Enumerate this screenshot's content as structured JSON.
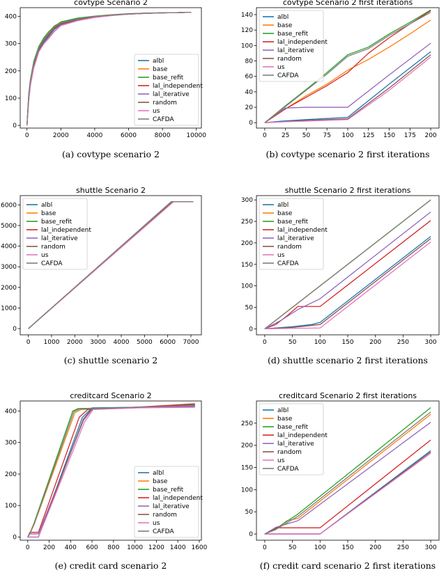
{
  "legend_labels": [
    "albl",
    "base",
    "base_refit",
    "lal_independent",
    "lal_iterative",
    "random",
    "us",
    "CAFDA"
  ],
  "series_colors": {
    "albl": "#1f77b4",
    "base": "#ff7f0e",
    "base_refit": "#2ca02c",
    "lal_independent": "#d62728",
    "lal_iterative": "#9467bd",
    "random": "#8c564b",
    "us": "#e377c2",
    "CAFDA": "#7f7f7f"
  },
  "chart_data": [
    {
      "id": "a",
      "type": "line",
      "title": "covtype Scenario 2",
      "caption": "(a) covtype scenario 2",
      "xlim": [
        -400,
        10300
      ],
      "ylim": [
        -10,
        432
      ],
      "xticks": [
        0,
        2000,
        4000,
        6000,
        8000,
        10000
      ],
      "yticks": [
        0,
        100,
        200,
        300,
        400
      ],
      "legend_loc": "lower-right",
      "series": [
        {
          "name": "albl",
          "x": [
            0,
            100,
            200,
            400,
            700,
            1000,
            1300,
            1600,
            2000,
            3000,
            4000,
            5000,
            6000,
            7000,
            8000,
            9000,
            9700
          ],
          "y": [
            0,
            90,
            150,
            215,
            275,
            305,
            328,
            352,
            370,
            388,
            398,
            404,
            408,
            411,
            413,
            414,
            415
          ]
        },
        {
          "name": "base",
          "x": [
            0,
            100,
            200,
            400,
            700,
            1000,
            1300,
            1600,
            2000,
            3000,
            4000,
            5000,
            6000,
            7000,
            8000,
            9000,
            9700
          ],
          "y": [
            0,
            110,
            165,
            230,
            285,
            318,
            340,
            365,
            378,
            392,
            400,
            405,
            409,
            412,
            413,
            414,
            415
          ]
        },
        {
          "name": "base_refit",
          "x": [
            0,
            100,
            200,
            400,
            700,
            1000,
            1300,
            1600,
            2000,
            3000,
            4000,
            5000,
            6000,
            7000,
            8000,
            9000,
            9700
          ],
          "y": [
            0,
            112,
            168,
            235,
            290,
            322,
            345,
            362,
            380,
            394,
            401,
            406,
            410,
            412,
            413,
            414,
            415
          ]
        },
        {
          "name": "lal_independent",
          "x": [
            0,
            100,
            200,
            400,
            700,
            1000,
            1300,
            1600,
            2000,
            3000,
            4000,
            5000,
            6000,
            7000,
            8000,
            9000,
            9700
          ],
          "y": [
            0,
            105,
            160,
            225,
            282,
            315,
            335,
            358,
            375,
            390,
            399,
            405,
            409,
            411,
            413,
            414,
            415
          ]
        },
        {
          "name": "lal_iterative",
          "x": [
            0,
            100,
            200,
            400,
            700,
            1000,
            1300,
            1600,
            2000,
            3000,
            4000,
            5000,
            6000,
            7000,
            8000,
            9000,
            9700
          ],
          "y": [
            0,
            95,
            150,
            215,
            272,
            300,
            322,
            345,
            368,
            385,
            396,
            403,
            408,
            411,
            413,
            414,
            415
          ]
        },
        {
          "name": "random",
          "x": [
            0,
            100,
            200,
            400,
            700,
            1000,
            1300,
            1600,
            2000,
            3000,
            4000,
            5000,
            6000,
            7000,
            8000,
            9000,
            9700
          ],
          "y": [
            0,
            100,
            155,
            220,
            278,
            310,
            332,
            355,
            372,
            389,
            398,
            404,
            408,
            411,
            413,
            414,
            415
          ]
        },
        {
          "name": "us",
          "x": [
            0,
            100,
            200,
            400,
            700,
            1000,
            1300,
            1600,
            2000,
            3000,
            4000,
            5000,
            6000,
            7000,
            8000,
            9000,
            9700
          ],
          "y": [
            0,
            85,
            145,
            210,
            270,
            300,
            320,
            343,
            366,
            384,
            396,
            403,
            408,
            411,
            413,
            414,
            415
          ]
        },
        {
          "name": "CAFDA",
          "x": [
            0,
            100,
            200,
            400,
            700,
            1000,
            1300,
            1600,
            2000,
            3000,
            4000,
            5000,
            6000,
            7000,
            8000,
            9000,
            9700
          ],
          "y": [
            0,
            108,
            162,
            228,
            284,
            316,
            338,
            360,
            376,
            391,
            400,
            405,
            409,
            412,
            413,
            414,
            415
          ]
        }
      ]
    },
    {
      "id": "b",
      "type": "line",
      "title": "covtype Scenario 2 first iterations",
      "caption": "(b) covtype scenario 2 first iterations",
      "xlim": [
        -10,
        210
      ],
      "ylim": [
        -7,
        149
      ],
      "xticks": [
        0,
        25,
        50,
        75,
        100,
        125,
        150,
        175,
        200
      ],
      "yticks": [
        0,
        20,
        40,
        60,
        80,
        100,
        120,
        140
      ],
      "legend_loc": "upper-left",
      "series": [
        {
          "name": "albl",
          "x": [
            0,
            20,
            50,
            100,
            150,
            200
          ],
          "y": [
            0,
            2,
            4,
            7,
            50,
            92
          ]
        },
        {
          "name": "base",
          "x": [
            0,
            25,
            50,
            75,
            100,
            125,
            150,
            175,
            200
          ],
          "y": [
            0,
            18,
            35,
            50,
            68,
            82,
            98,
            115,
            133
          ]
        },
        {
          "name": "base_refit",
          "x": [
            0,
            25,
            50,
            75,
            100,
            125,
            150,
            175,
            200
          ],
          "y": [
            0,
            22,
            43,
            65,
            88,
            98,
            115,
            130,
            146
          ]
        },
        {
          "name": "lal_independent",
          "x": [
            0,
            25,
            50,
            75,
            100,
            125,
            150,
            175,
            200
          ],
          "y": [
            0,
            18,
            33,
            48,
            65,
            90,
            110,
            128,
            145
          ]
        },
        {
          "name": "lal_iterative",
          "x": [
            0,
            15,
            25,
            50,
            100,
            150,
            200
          ],
          "y": [
            0,
            12,
            19,
            20,
            20,
            62,
            103
          ]
        },
        {
          "name": "random",
          "x": [
            0,
            20,
            50,
            100,
            150,
            200
          ],
          "y": [
            0,
            1,
            3,
            5,
            45,
            88
          ]
        },
        {
          "name": "us",
          "x": [
            0,
            20,
            50,
            100,
            150,
            200
          ],
          "y": [
            0,
            1,
            2,
            4,
            42,
            85
          ]
        },
        {
          "name": "CAFDA",
          "x": [
            0,
            25,
            50,
            75,
            100,
            125,
            150,
            175,
            200
          ],
          "y": [
            0,
            21,
            42,
            63,
            86,
            96,
            113,
            128,
            143
          ]
        }
      ]
    },
    {
      "id": "c",
      "type": "line",
      "title": "shuttle Scenario 2",
      "caption": "(c) shuttle scenario 2",
      "xlim": [
        -350,
        7450
      ],
      "ylim": [
        -300,
        6450
      ],
      "xticks": [
        0,
        1000,
        2000,
        3000,
        4000,
        5000,
        6000,
        7000
      ],
      "yticks": [
        0,
        1000,
        2000,
        3000,
        4000,
        5000,
        6000
      ],
      "legend_loc": "upper-left",
      "series": [
        {
          "name": "albl",
          "x": [
            0,
            6150,
            7100
          ],
          "y": [
            0,
            6150,
            6150
          ]
        },
        {
          "name": "base",
          "x": [
            0,
            6150,
            7100
          ],
          "y": [
            0,
            6150,
            6150
          ]
        },
        {
          "name": "base_refit",
          "x": [
            0,
            6150,
            7100
          ],
          "y": [
            0,
            6150,
            6150
          ]
        },
        {
          "name": "lal_independent",
          "x": [
            0,
            6180,
            7100
          ],
          "y": [
            0,
            6150,
            6150
          ]
        },
        {
          "name": "lal_iterative",
          "x": [
            0,
            6200,
            7100
          ],
          "y": [
            0,
            6150,
            6150
          ]
        },
        {
          "name": "random",
          "x": [
            0,
            6200,
            7100
          ],
          "y": [
            0,
            6150,
            6150
          ]
        },
        {
          "name": "us",
          "x": [
            0,
            6250,
            7100
          ],
          "y": [
            0,
            6150,
            6150
          ]
        },
        {
          "name": "CAFDA",
          "x": [
            0,
            6150,
            7100
          ],
          "y": [
            0,
            6150,
            6150
          ]
        }
      ]
    },
    {
      "id": "d",
      "type": "line",
      "title": "shuttle Scenario 2 first iterations",
      "caption": "(d) shuttle scenario 2 first iterations",
      "xlim": [
        -15,
        315
      ],
      "ylim": [
        -14,
        310
      ],
      "xticks": [
        0,
        50,
        100,
        150,
        200,
        250,
        300
      ],
      "yticks": [
        0,
        50,
        100,
        150,
        200,
        250,
        300
      ],
      "legend_loc": "upper-left",
      "series": [
        {
          "name": "albl",
          "x": [
            0,
            50,
            85,
            100,
            300
          ],
          "y": [
            0,
            5,
            10,
            15,
            215
          ]
        },
        {
          "name": "base",
          "x": [
            0,
            300
          ],
          "y": [
            0,
            300
          ]
        },
        {
          "name": "base_refit",
          "x": [
            0,
            300
          ],
          "y": [
            0,
            300
          ]
        },
        {
          "name": "lal_independent",
          "x": [
            0,
            20,
            40,
            60,
            100,
            300
          ],
          "y": [
            0,
            10,
            30,
            52,
            52,
            252
          ]
        },
        {
          "name": "lal_iterative",
          "x": [
            0,
            30,
            60,
            100,
            300
          ],
          "y": [
            0,
            20,
            45,
            70,
            272
          ]
        },
        {
          "name": "random",
          "x": [
            0,
            50,
            100,
            300
          ],
          "y": [
            0,
            3,
            10,
            210
          ]
        },
        {
          "name": "us",
          "x": [
            0,
            50,
            100,
            300
          ],
          "y": [
            0,
            1,
            2,
            202
          ]
        },
        {
          "name": "CAFDA",
          "x": [
            0,
            300
          ],
          "y": [
            0,
            300
          ]
        }
      ]
    },
    {
      "id": "e",
      "type": "line",
      "title": "creditcard Scenario 2",
      "caption": "(e) credit card scenario 2",
      "xlim": [
        -70,
        1620
      ],
      "ylim": [
        -10,
        432
      ],
      "xticks": [
        0,
        200,
        400,
        600,
        800,
        1000,
        1200,
        1400,
        1600
      ],
      "yticks": [
        0,
        100,
        200,
        300,
        400
      ],
      "legend_loc": "lower-right",
      "series": [
        {
          "name": "albl",
          "x": [
            0,
            100,
            510,
            600,
            1000,
            1560
          ],
          "y": [
            0,
            0,
            380,
            410,
            412,
            415
          ]
        },
        {
          "name": "base",
          "x": [
            0,
            20,
            60,
            440,
            500,
            1000,
            1560
          ],
          "y": [
            0,
            10,
            40,
            395,
            405,
            410,
            420
          ]
        },
        {
          "name": "base_refit",
          "x": [
            0,
            20,
            60,
            420,
            470,
            1000,
            1560
          ],
          "y": [
            0,
            12,
            45,
            400,
            408,
            412,
            420
          ]
        },
        {
          "name": "lal_independent",
          "x": [
            0,
            20,
            100,
            480,
            560,
            1000,
            1560
          ],
          "y": [
            0,
            15,
            15,
            380,
            405,
            412,
            423
          ]
        },
        {
          "name": "lal_iterative",
          "x": [
            0,
            20,
            100,
            520,
            600,
            1000,
            1560
          ],
          "y": [
            0,
            10,
            10,
            370,
            405,
            410,
            415
          ]
        },
        {
          "name": "random",
          "x": [
            0,
            100,
            520,
            600,
            1000,
            1560
          ],
          "y": [
            0,
            0,
            375,
            408,
            412,
            418
          ]
        },
        {
          "name": "us",
          "x": [
            0,
            100,
            530,
            610,
            1000,
            1560
          ],
          "y": [
            0,
            0,
            365,
            405,
            410,
            412
          ]
        },
        {
          "name": "CAFDA",
          "x": [
            0,
            20,
            60,
            430,
            480,
            1000,
            1560
          ],
          "y": [
            0,
            12,
            42,
            398,
            406,
            412,
            418
          ]
        }
      ]
    },
    {
      "id": "f",
      "type": "line",
      "title": "creditcard Scenario 2 first iterations",
      "caption": "(f) credit card scenario 2 first iterations",
      "xlim": [
        -15,
        315
      ],
      "ylim": [
        -14,
        300
      ],
      "xticks": [
        0,
        50,
        100,
        150,
        200,
        250,
        300
      ],
      "yticks": [
        0,
        50,
        100,
        150,
        200,
        250
      ],
      "legend_loc": "upper-left",
      "series": [
        {
          "name": "albl",
          "x": [
            0,
            100,
            300
          ],
          "y": [
            0,
            0,
            188
          ]
        },
        {
          "name": "base",
          "x": [
            0,
            20,
            40,
            60,
            300
          ],
          "y": [
            0,
            10,
            30,
            35,
            270
          ]
        },
        {
          "name": "base_refit",
          "x": [
            0,
            20,
            60,
            300
          ],
          "y": [
            0,
            12,
            45,
            285
          ]
        },
        {
          "name": "lal_independent",
          "x": [
            0,
            20,
            100,
            300
          ],
          "y": [
            0,
            14,
            14,
            212
          ]
        },
        {
          "name": "lal_iterative",
          "x": [
            0,
            20,
            60,
            300
          ],
          "y": [
            0,
            15,
            30,
            252
          ]
        },
        {
          "name": "random",
          "x": [
            0,
            100,
            300
          ],
          "y": [
            0,
            0,
            185
          ]
        },
        {
          "name": "us",
          "x": [
            0,
            100,
            300
          ],
          "y": [
            0,
            0,
            182
          ]
        },
        {
          "name": "CAFDA",
          "x": [
            0,
            20,
            60,
            300
          ],
          "y": [
            0,
            10,
            40,
            275
          ]
        }
      ]
    }
  ]
}
